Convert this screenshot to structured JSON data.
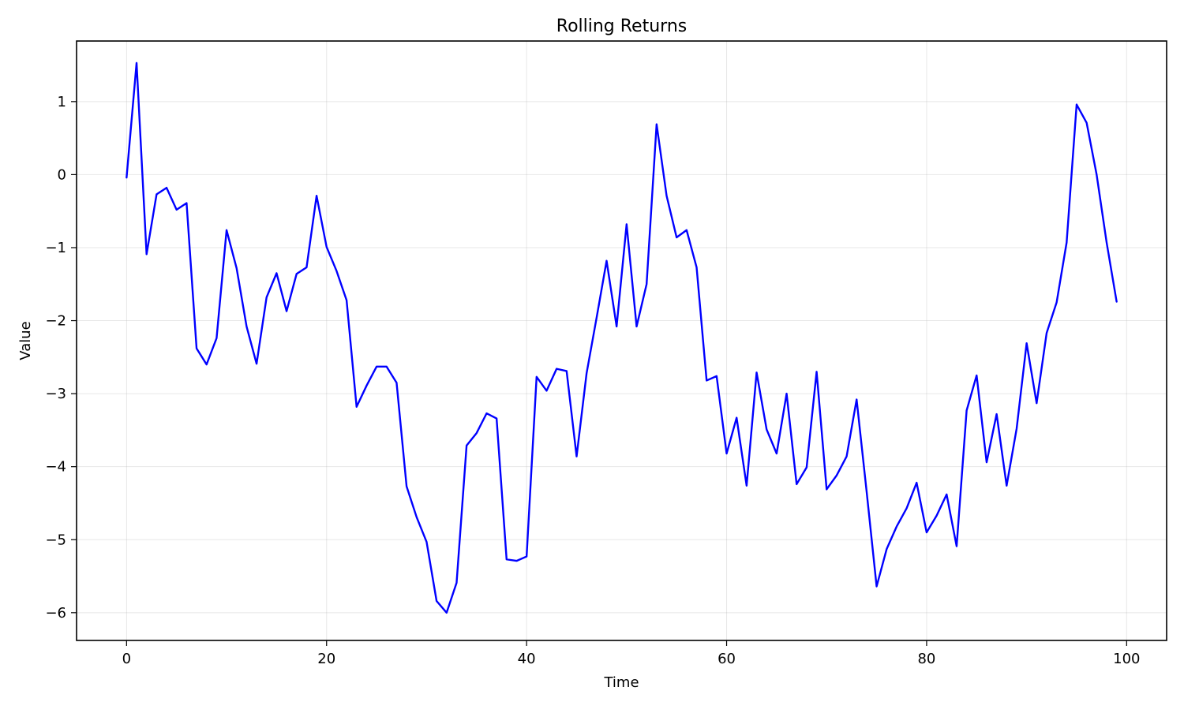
{
  "chart_data": {
    "type": "line",
    "title": "Rolling Returns",
    "xlabel": "Time",
    "ylabel": "Value",
    "xlim": [
      -5,
      104
    ],
    "ylim": [
      -6.38,
      1.83
    ],
    "xticks": [
      0,
      20,
      40,
      60,
      80,
      100
    ],
    "yticks": [
      1,
      0,
      -1,
      -2,
      -3,
      -4,
      -5,
      -6
    ],
    "xtick_labels": [
      "0",
      "20",
      "40",
      "60",
      "80",
      "100"
    ],
    "ytick_labels": [
      "1",
      "0",
      "−1",
      "−2",
      "−3",
      "−4",
      "−5",
      "−6"
    ],
    "grid": true,
    "line_color": "#0000ff",
    "series": [
      {
        "x": [
          0,
          1,
          2,
          3,
          4,
          5,
          6,
          7,
          8,
          9,
          10,
          11,
          12,
          13,
          14,
          15,
          16,
          17,
          18,
          19,
          20,
          21,
          22,
          23,
          24,
          25,
          26,
          27,
          28,
          29,
          30,
          31,
          32,
          33,
          34,
          35,
          36,
          37,
          38,
          39,
          40,
          41,
          42,
          43,
          44,
          45,
          46,
          47,
          48,
          49,
          50,
          51,
          52,
          53,
          54,
          55,
          56,
          57,
          58,
          59,
          60,
          61,
          62,
          63,
          64,
          65,
          66,
          67,
          68,
          69,
          70,
          71,
          72,
          73,
          74,
          75,
          76,
          77,
          78,
          79,
          80,
          81,
          82,
          83,
          84,
          85,
          86,
          87,
          88,
          89,
          90,
          91,
          92,
          93,
          94,
          95,
          96,
          97,
          98,
          99
        ],
        "values": [
          -0.04,
          1.53,
          -1.09,
          -0.27,
          -0.18,
          -0.48,
          -0.39,
          -2.38,
          -2.6,
          -2.24,
          -0.76,
          -1.28,
          -2.08,
          -2.59,
          -1.68,
          -1.35,
          -1.87,
          -1.36,
          -1.27,
          -0.29,
          -0.99,
          -1.32,
          -1.72,
          -3.18,
          -2.89,
          -2.63,
          -2.63,
          -2.85,
          -4.27,
          -4.69,
          -5.03,
          -5.84,
          -6.0,
          -5.59,
          -3.71,
          -3.54,
          -3.27,
          -3.34,
          -5.27,
          -5.29,
          -5.23,
          -2.77,
          -2.96,
          -2.66,
          -2.69,
          -3.86,
          -2.72,
          -1.96,
          -1.18,
          -2.08,
          -0.68,
          -2.08,
          -1.5,
          0.69,
          -0.29,
          -0.86,
          -0.76,
          -1.27,
          -2.82,
          -2.76,
          -3.82,
          -3.33,
          -4.26,
          -2.71,
          -3.49,
          -3.82,
          -3.0,
          -4.24,
          -4.01,
          -2.7,
          -4.31,
          -4.12,
          -3.86,
          -3.08,
          -4.34,
          -5.64,
          -5.13,
          -4.82,
          -4.57,
          -4.22,
          -4.9,
          -4.67,
          -4.38,
          -5.09,
          -3.23,
          -2.75,
          -3.94,
          -3.28,
          -4.26,
          -3.48,
          -2.31,
          -3.13,
          -2.17,
          -1.75,
          -0.93,
          0.96,
          0.71,
          0.0,
          -0.93,
          -1.74
        ]
      }
    ]
  }
}
